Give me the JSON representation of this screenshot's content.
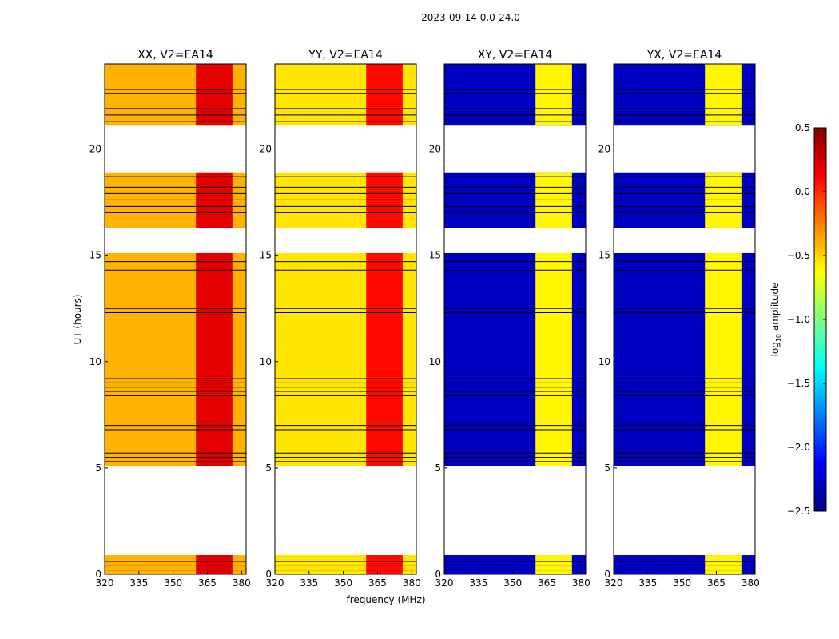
{
  "suptitle": "2023-09-14 0.0-24.0",
  "colors": {
    "gap": "#ffffff",
    "frame": "#000000",
    "jet": [
      "#00007f",
      "#0000ff",
      "#007fff",
      "#00ffff",
      "#7fff7f",
      "#ffff00",
      "#ff7f00",
      "#ff0000",
      "#7f0000"
    ]
  },
  "chart_data": {
    "type": "heatmap",
    "xlabel": "frequency (MHz)",
    "ylabel": "UT (hours)",
    "xlim": [
      320,
      382
    ],
    "ylim": [
      0,
      24
    ],
    "xticks": [
      320,
      335,
      350,
      365,
      380
    ],
    "xtick_labels": [
      "320",
      "335",
      "350",
      "365",
      "380"
    ],
    "yticks": [
      0,
      5,
      10,
      15,
      20
    ],
    "ytick_labels": [
      "0",
      "5",
      "10",
      "15",
      "20"
    ],
    "rfi_band_mhz": [
      360,
      376
    ],
    "data_time_ranges_hours": [
      [
        0.0,
        0.9
      ],
      [
        5.1,
        15.1
      ],
      [
        16.3,
        18.9
      ],
      [
        21.1,
        24.0
      ]
    ],
    "flagged_time_lines_hours": [
      0.2,
      0.4,
      0.6,
      5.3,
      5.5,
      5.7,
      6.8,
      7.0,
      8.4,
      8.6,
      8.8,
      9.0,
      9.2,
      12.3,
      12.5,
      14.3,
      14.7,
      17.0,
      17.3,
      17.6,
      17.9,
      18.2,
      18.5,
      18.7,
      21.3,
      21.6,
      21.9,
      22.6,
      22.8
    ],
    "colorbar": {
      "label": "log10 amplitude",
      "label_base": "log",
      "label_sub": "10",
      "label_rest": " amplitude",
      "range": [
        -2.5,
        0.5
      ],
      "ticks": [
        0.5,
        0.0,
        -0.5,
        -1.0,
        -1.5,
        -2.0,
        -2.5
      ],
      "tick_labels": [
        "0.5",
        "0.0",
        "−0.5",
        "−1.0",
        "−1.5",
        "−2.0",
        "−2.5"
      ]
    },
    "panels": [
      {
        "title": "XX, V2=EA14",
        "base_level": -0.4,
        "band_level": 0.2
      },
      {
        "title": "YY, V2=EA14",
        "base_level": -0.55,
        "band_level": 0.1
      },
      {
        "title": "XY, V2=EA14",
        "base_level": -2.3,
        "band_level": -0.6
      },
      {
        "title": "YX, V2=EA14",
        "base_level": -2.3,
        "band_level": -0.6
      }
    ]
  }
}
